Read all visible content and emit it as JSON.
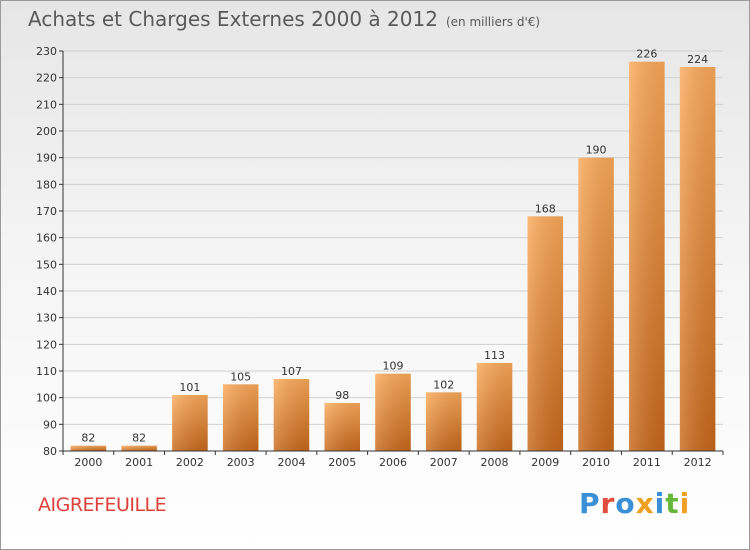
{
  "header": {
    "title": "Achats et Charges Externes 2000 à 2012",
    "unit": "(en milliers d'€)"
  },
  "footer": {
    "commune": "AIGREFEUILLE",
    "brand": "Proxiti",
    "brand_colors": [
      "#3a8fd6",
      "#e34b3c",
      "#3a8fd6",
      "#f0a020",
      "#3a8fd6",
      "#66b83a",
      "#f0a020"
    ]
  },
  "colors": {
    "bar_light": "#fbaa5a",
    "bar_dark": "#c8681a",
    "axis": "#333333",
    "grid": "#d0d0d0"
  },
  "chart_data": {
    "type": "bar",
    "categories": [
      "2000",
      "2001",
      "2002",
      "2003",
      "2004",
      "2005",
      "2006",
      "2007",
      "2008",
      "2009",
      "2010",
      "2011",
      "2012"
    ],
    "values": [
      82,
      82,
      101,
      105,
      107,
      98,
      109,
      102,
      113,
      168,
      190,
      226,
      224
    ],
    "ylim": [
      80,
      230
    ],
    "yticks": [
      80,
      90,
      100,
      110,
      120,
      130,
      140,
      150,
      160,
      170,
      180,
      190,
      200,
      210,
      220,
      230
    ],
    "grid": true,
    "xlabel": "",
    "ylabel": ""
  }
}
